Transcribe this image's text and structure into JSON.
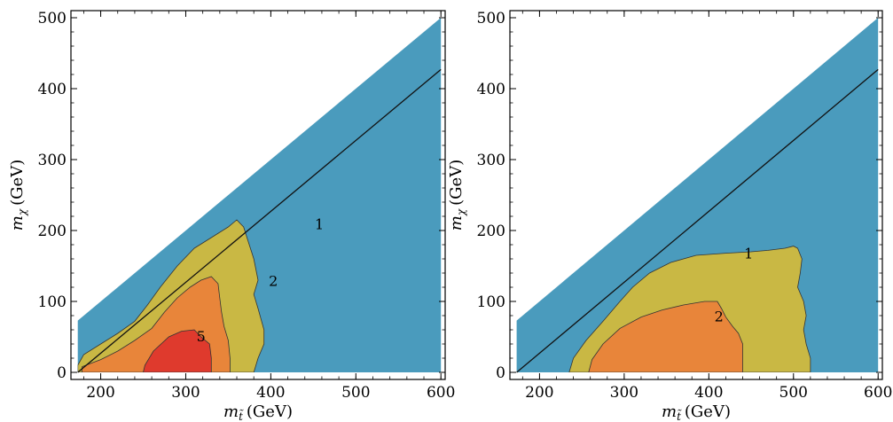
{
  "chart_data": [
    {
      "type": "contour",
      "panel": "left",
      "xlabel_main": "m",
      "xlabel_sub": "t̃",
      "xlabel_unit": "(GeV)",
      "ylabel_main": "m",
      "ylabel_sub": "χ",
      "ylabel_unit": "(GeV)",
      "xlim": [
        165,
        605
      ],
      "ylim": [
        -10,
        510
      ],
      "xticks": [
        "200",
        "300",
        "400",
        "500",
        "600"
      ],
      "yticks": [
        "0",
        "100",
        "200",
        "300",
        "400",
        "500"
      ],
      "colors": {
        "level0": "#4a9bbd",
        "level1": "#c9b844",
        "level2": "#e8853a",
        "level5": "#df3a2d"
      },
      "diagonal_line": [
        [
          173,
          0
        ],
        [
          600,
          427
        ]
      ],
      "domain_triangle": [
        [
          173,
          0
        ],
        [
          600,
          0
        ],
        [
          600,
          500
        ],
        [
          173,
          73
        ]
      ],
      "levels": [
        {
          "label": "1",
          "label_at": [
            457,
            208
          ],
          "polygon": [
            [
              173,
              10
            ],
            [
              180,
              25
            ],
            [
              200,
              40
            ],
            [
              220,
              55
            ],
            [
              240,
              72
            ],
            [
              255,
              95
            ],
            [
              270,
              120
            ],
            [
              290,
              150
            ],
            [
              310,
              175
            ],
            [
              330,
              190
            ],
            [
              350,
              205
            ],
            [
              360,
              215
            ],
            [
              368,
              205
            ],
            [
              372,
              190
            ],
            [
              380,
              160
            ],
            [
              385,
              130
            ],
            [
              380,
              110
            ],
            [
              385,
              90
            ],
            [
              392,
              60
            ],
            [
              392,
              40
            ],
            [
              385,
              20
            ],
            [
              380,
              0
            ],
            [
              173,
              0
            ]
          ]
        },
        {
          "label": "2",
          "label_at": [
            403,
            128
          ],
          "polygon": [
            [
              178,
              8
            ],
            [
              200,
              18
            ],
            [
              220,
              30
            ],
            [
              240,
              45
            ],
            [
              260,
              62
            ],
            [
              275,
              85
            ],
            [
              290,
              105
            ],
            [
              305,
              120
            ],
            [
              318,
              130
            ],
            [
              330,
              135
            ],
            [
              338,
              125
            ],
            [
              340,
              105
            ],
            [
              342,
              85
            ],
            [
              345,
              65
            ],
            [
              350,
              45
            ],
            [
              352,
              20
            ],
            [
              352,
              0
            ],
            [
              178,
              0
            ]
          ]
        },
        {
          "label": "5",
          "label_at": [
            318,
            50
          ],
          "polygon": [
            [
              250,
              0
            ],
            [
              252,
              10
            ],
            [
              262,
              30
            ],
            [
              280,
              50
            ],
            [
              295,
              58
            ],
            [
              310,
              60
            ],
            [
              318,
              50
            ],
            [
              328,
              40
            ],
            [
              330,
              20
            ],
            [
              330,
              0
            ]
          ]
        }
      ]
    },
    {
      "type": "contour",
      "panel": "right",
      "xlabel_main": "m",
      "xlabel_sub": "t̃",
      "xlabel_unit": "(GeV)",
      "ylabel_main": "m",
      "ylabel_sub": "χ",
      "ylabel_unit": "(GeV)",
      "xlim": [
        165,
        605
      ],
      "ylim": [
        -10,
        510
      ],
      "xticks": [
        "200",
        "300",
        "400",
        "500",
        "600"
      ],
      "yticks": [
        "0",
        "100",
        "200",
        "300",
        "400",
        "500"
      ],
      "colors": {
        "level0": "#4a9bbd",
        "level1": "#c9b844",
        "level2": "#e8853a"
      },
      "diagonal_line": [
        [
          173,
          0
        ],
        [
          600,
          427
        ]
      ],
      "domain_triangle": [
        [
          173,
          0
        ],
        [
          600,
          0
        ],
        [
          600,
          500
        ],
        [
          173,
          73
        ]
      ],
      "levels": [
        {
          "label": "1",
          "label_at": [
            447,
            167
          ],
          "polygon": [
            [
              235,
              0
            ],
            [
              240,
              20
            ],
            [
              255,
              45
            ],
            [
              275,
              72
            ],
            [
              295,
              100
            ],
            [
              310,
              120
            ],
            [
              330,
              140
            ],
            [
              355,
              155
            ],
            [
              385,
              165
            ],
            [
              420,
              168
            ],
            [
              450,
              170
            ],
            [
              470,
              172
            ],
            [
              490,
              175
            ],
            [
              500,
              178
            ],
            [
              505,
              175
            ],
            [
              510,
              160
            ],
            [
              508,
              140
            ],
            [
              505,
              120
            ],
            [
              512,
              100
            ],
            [
              515,
              80
            ],
            [
              512,
              60
            ],
            [
              515,
              40
            ],
            [
              520,
              20
            ],
            [
              520,
              0
            ]
          ]
        },
        {
          "label": "2",
          "label_at": [
            412,
            78
          ],
          "polygon": [
            [
              258,
              0
            ],
            [
              262,
              18
            ],
            [
              275,
              40
            ],
            [
              295,
              62
            ],
            [
              320,
              78
            ],
            [
              345,
              88
            ],
            [
              370,
              95
            ],
            [
              395,
              100
            ],
            [
              410,
              100
            ],
            [
              415,
              90
            ],
            [
              420,
              78
            ],
            [
              428,
              65
            ],
            [
              435,
              55
            ],
            [
              440,
              40
            ],
            [
              440,
              20
            ],
            [
              440,
              0
            ]
          ]
        }
      ]
    }
  ]
}
